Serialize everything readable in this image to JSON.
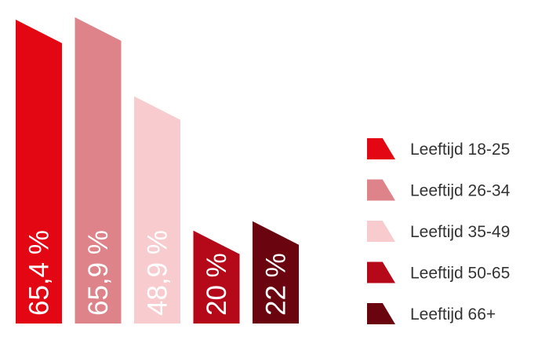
{
  "chart_data": {
    "type": "bar",
    "title": "",
    "xlabel": "",
    "ylabel": "",
    "ylim": [
      0,
      70
    ],
    "grid": false,
    "legend_position": "right",
    "categories": [
      "Leeftijd 18-25",
      "Leeftijd 26-34",
      "Leeftijd 35-49",
      "Leeftijd 50-65",
      "Leeftijd 66+"
    ],
    "values": [
      65.4,
      65.9,
      48.9,
      20,
      22
    ],
    "value_labels": [
      "65,4 %",
      "65,9 %",
      "48,9 %",
      "20 %",
      "22 %"
    ],
    "colors": [
      "#e30613",
      "#de8389",
      "#f8cccf",
      "#b5091a",
      "#6a040f"
    ]
  }
}
